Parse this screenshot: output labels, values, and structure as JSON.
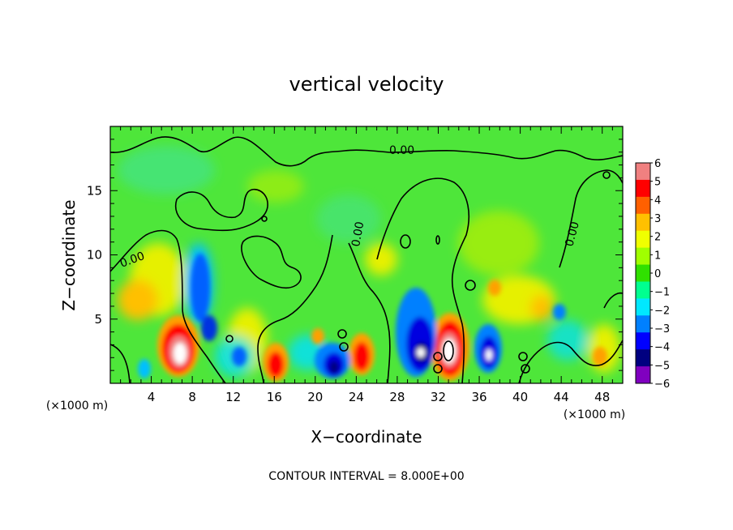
{
  "chart_data": {
    "type": "heatmap",
    "title": "vertical velocity",
    "xlabel": "X−coordinate",
    "ylabel": "Z−coordinate",
    "x_unit_left": "(×1000 m)",
    "x_unit_right": "(×1000 m)",
    "footer": "CONTOUR INTERVAL = 8.000E+00",
    "xlim": [
      0,
      50
    ],
    "ylim": [
      0,
      20
    ],
    "xticks": [
      4,
      8,
      12,
      16,
      20,
      24,
      28,
      32,
      36,
      40,
      44,
      48
    ],
    "xtick_labels": [
      "4",
      "8",
      "12",
      "16",
      "20",
      "24",
      "28",
      "32",
      "36",
      "40",
      "44",
      "48"
    ],
    "yticks": [
      5,
      10,
      15
    ],
    "ytick_labels": [
      "5",
      "10",
      "15"
    ],
    "contour_label": "0.00",
    "colorbar": {
      "min": -6,
      "max": 6,
      "labels": [
        "6",
        "5",
        "4",
        "3",
        "2",
        "1",
        "0",
        "−1",
        "−2",
        "−3",
        "−4",
        "−5",
        "−6"
      ],
      "colors": [
        "#ffffff",
        "#f08080",
        "#ff0000",
        "#ff6000",
        "#ffc000",
        "#f0ff00",
        "#a0ff00",
        "#30e000",
        "#00ff90",
        "#00e8ff",
        "#0080ff",
        "#0000ff",
        "#000080",
        "#8000c0"
      ]
    },
    "features": [
      {
        "x": 6.3,
        "z": 2.4,
        "w": 1.0,
        "type": "updraft"
      },
      {
        "x": 16.2,
        "z": 1.6,
        "w": 0.7,
        "type": "updraft"
      },
      {
        "x": 24.5,
        "z": 2.0,
        "w": 0.7,
        "type": "updraft"
      },
      {
        "x": 33.0,
        "z": 2.5,
        "w": 1.0,
        "type": "updraft"
      },
      {
        "x": 9.5,
        "z": 6.5,
        "w": -0.6,
        "type": "downdraft"
      },
      {
        "x": 21.8,
        "z": 1.6,
        "w": -0.9,
        "type": "downdraft"
      },
      {
        "x": 30.0,
        "z": 3.0,
        "w": -0.9,
        "type": "downdraft"
      },
      {
        "x": 36.8,
        "z": 2.3,
        "w": -0.9,
        "type": "downdraft"
      }
    ]
  }
}
